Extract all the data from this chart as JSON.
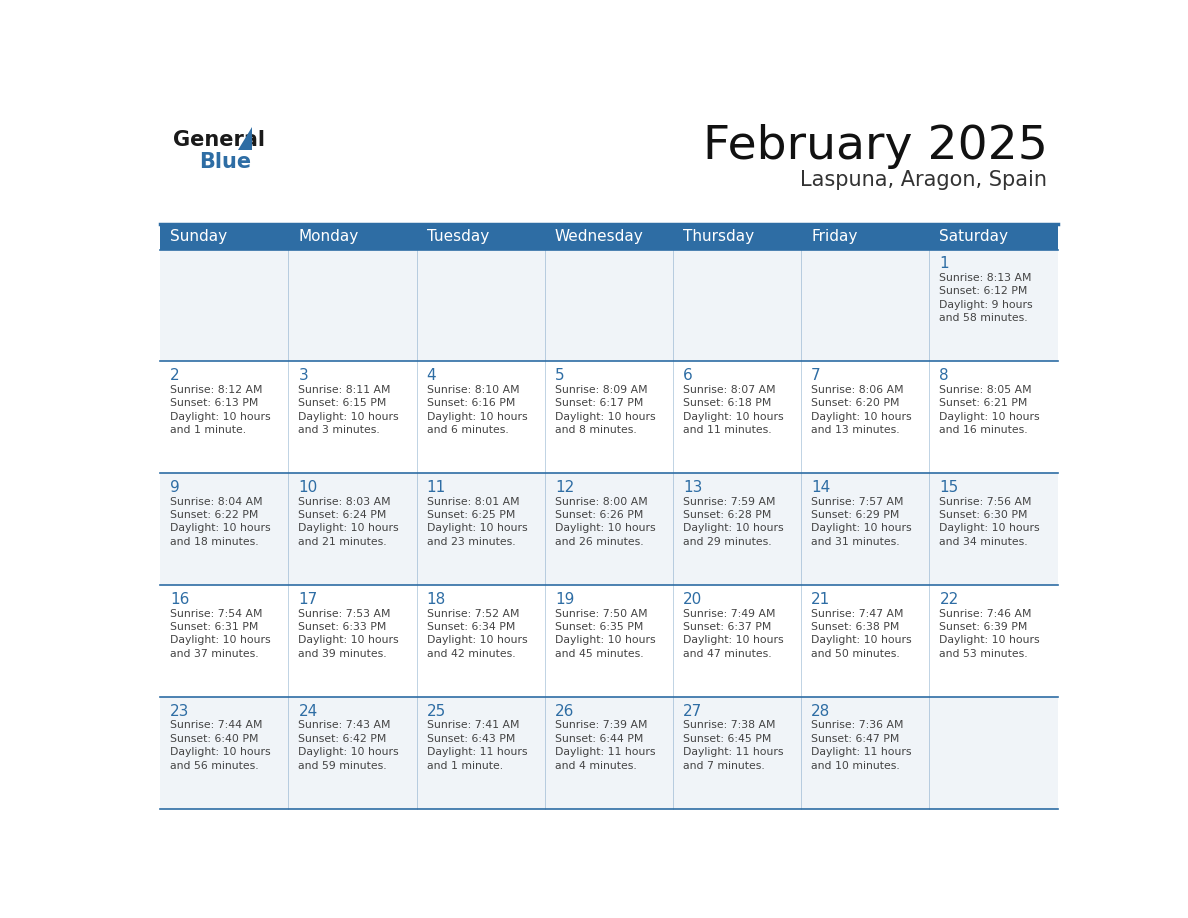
{
  "title": "February 2025",
  "subtitle": "Laspuna, Aragon, Spain",
  "header_bg": "#2E6DA4",
  "header_text_color": "#FFFFFF",
  "cell_bg_odd": "#F0F4F8",
  "cell_bg_even": "#FFFFFF",
  "day_number_color": "#2E6DA4",
  "text_color": "#444444",
  "line_color": "#2E6DA4",
  "days_of_week": [
    "Sunday",
    "Monday",
    "Tuesday",
    "Wednesday",
    "Thursday",
    "Friday",
    "Saturday"
  ],
  "weeks": [
    [
      {
        "day": "",
        "info": ""
      },
      {
        "day": "",
        "info": ""
      },
      {
        "day": "",
        "info": ""
      },
      {
        "day": "",
        "info": ""
      },
      {
        "day": "",
        "info": ""
      },
      {
        "day": "",
        "info": ""
      },
      {
        "day": "1",
        "info": "Sunrise: 8:13 AM\nSunset: 6:12 PM\nDaylight: 9 hours\nand 58 minutes."
      }
    ],
    [
      {
        "day": "2",
        "info": "Sunrise: 8:12 AM\nSunset: 6:13 PM\nDaylight: 10 hours\nand 1 minute."
      },
      {
        "day": "3",
        "info": "Sunrise: 8:11 AM\nSunset: 6:15 PM\nDaylight: 10 hours\nand 3 minutes."
      },
      {
        "day": "4",
        "info": "Sunrise: 8:10 AM\nSunset: 6:16 PM\nDaylight: 10 hours\nand 6 minutes."
      },
      {
        "day": "5",
        "info": "Sunrise: 8:09 AM\nSunset: 6:17 PM\nDaylight: 10 hours\nand 8 minutes."
      },
      {
        "day": "6",
        "info": "Sunrise: 8:07 AM\nSunset: 6:18 PM\nDaylight: 10 hours\nand 11 minutes."
      },
      {
        "day": "7",
        "info": "Sunrise: 8:06 AM\nSunset: 6:20 PM\nDaylight: 10 hours\nand 13 minutes."
      },
      {
        "day": "8",
        "info": "Sunrise: 8:05 AM\nSunset: 6:21 PM\nDaylight: 10 hours\nand 16 minutes."
      }
    ],
    [
      {
        "day": "9",
        "info": "Sunrise: 8:04 AM\nSunset: 6:22 PM\nDaylight: 10 hours\nand 18 minutes."
      },
      {
        "day": "10",
        "info": "Sunrise: 8:03 AM\nSunset: 6:24 PM\nDaylight: 10 hours\nand 21 minutes."
      },
      {
        "day": "11",
        "info": "Sunrise: 8:01 AM\nSunset: 6:25 PM\nDaylight: 10 hours\nand 23 minutes."
      },
      {
        "day": "12",
        "info": "Sunrise: 8:00 AM\nSunset: 6:26 PM\nDaylight: 10 hours\nand 26 minutes."
      },
      {
        "day": "13",
        "info": "Sunrise: 7:59 AM\nSunset: 6:28 PM\nDaylight: 10 hours\nand 29 minutes."
      },
      {
        "day": "14",
        "info": "Sunrise: 7:57 AM\nSunset: 6:29 PM\nDaylight: 10 hours\nand 31 minutes."
      },
      {
        "day": "15",
        "info": "Sunrise: 7:56 AM\nSunset: 6:30 PM\nDaylight: 10 hours\nand 34 minutes."
      }
    ],
    [
      {
        "day": "16",
        "info": "Sunrise: 7:54 AM\nSunset: 6:31 PM\nDaylight: 10 hours\nand 37 minutes."
      },
      {
        "day": "17",
        "info": "Sunrise: 7:53 AM\nSunset: 6:33 PM\nDaylight: 10 hours\nand 39 minutes."
      },
      {
        "day": "18",
        "info": "Sunrise: 7:52 AM\nSunset: 6:34 PM\nDaylight: 10 hours\nand 42 minutes."
      },
      {
        "day": "19",
        "info": "Sunrise: 7:50 AM\nSunset: 6:35 PM\nDaylight: 10 hours\nand 45 minutes."
      },
      {
        "day": "20",
        "info": "Sunrise: 7:49 AM\nSunset: 6:37 PM\nDaylight: 10 hours\nand 47 minutes."
      },
      {
        "day": "21",
        "info": "Sunrise: 7:47 AM\nSunset: 6:38 PM\nDaylight: 10 hours\nand 50 minutes."
      },
      {
        "day": "22",
        "info": "Sunrise: 7:46 AM\nSunset: 6:39 PM\nDaylight: 10 hours\nand 53 minutes."
      }
    ],
    [
      {
        "day": "23",
        "info": "Sunrise: 7:44 AM\nSunset: 6:40 PM\nDaylight: 10 hours\nand 56 minutes."
      },
      {
        "day": "24",
        "info": "Sunrise: 7:43 AM\nSunset: 6:42 PM\nDaylight: 10 hours\nand 59 minutes."
      },
      {
        "day": "25",
        "info": "Sunrise: 7:41 AM\nSunset: 6:43 PM\nDaylight: 11 hours\nand 1 minute."
      },
      {
        "day": "26",
        "info": "Sunrise: 7:39 AM\nSunset: 6:44 PM\nDaylight: 11 hours\nand 4 minutes."
      },
      {
        "day": "27",
        "info": "Sunrise: 7:38 AM\nSunset: 6:45 PM\nDaylight: 11 hours\nand 7 minutes."
      },
      {
        "day": "28",
        "info": "Sunrise: 7:36 AM\nSunset: 6:47 PM\nDaylight: 11 hours\nand 10 minutes."
      },
      {
        "day": "",
        "info": ""
      }
    ]
  ],
  "logo_general_color": "#1a1a1a",
  "logo_blue_color": "#2E6DA4",
  "logo_triangle_color": "#2E6DA4"
}
